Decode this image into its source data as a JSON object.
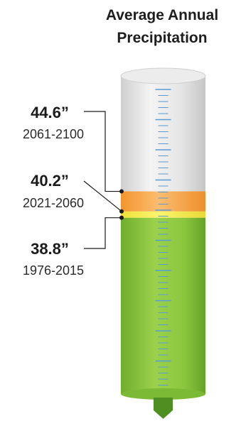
{
  "chart_data": {
    "type": "bar",
    "title_lines": [
      "Average Annual",
      "Precipitation"
    ],
    "categories": [
      "1976-2015",
      "2021-2060",
      "2061-2100"
    ],
    "values": [
      38.8,
      40.2,
      44.6
    ],
    "value_labels": [
      "38.8”",
      "40.2”",
      "44.6”"
    ],
    "unit": "inches",
    "colors": {
      "1976-2015": "#8cc63f",
      "2021-2060": "#f5ec4a",
      "2061-2100": "#f7a24a",
      "empty": "#dcdcdc",
      "ticks": "#5a9bd5"
    },
    "ylim": [
      0,
      70
    ]
  }
}
